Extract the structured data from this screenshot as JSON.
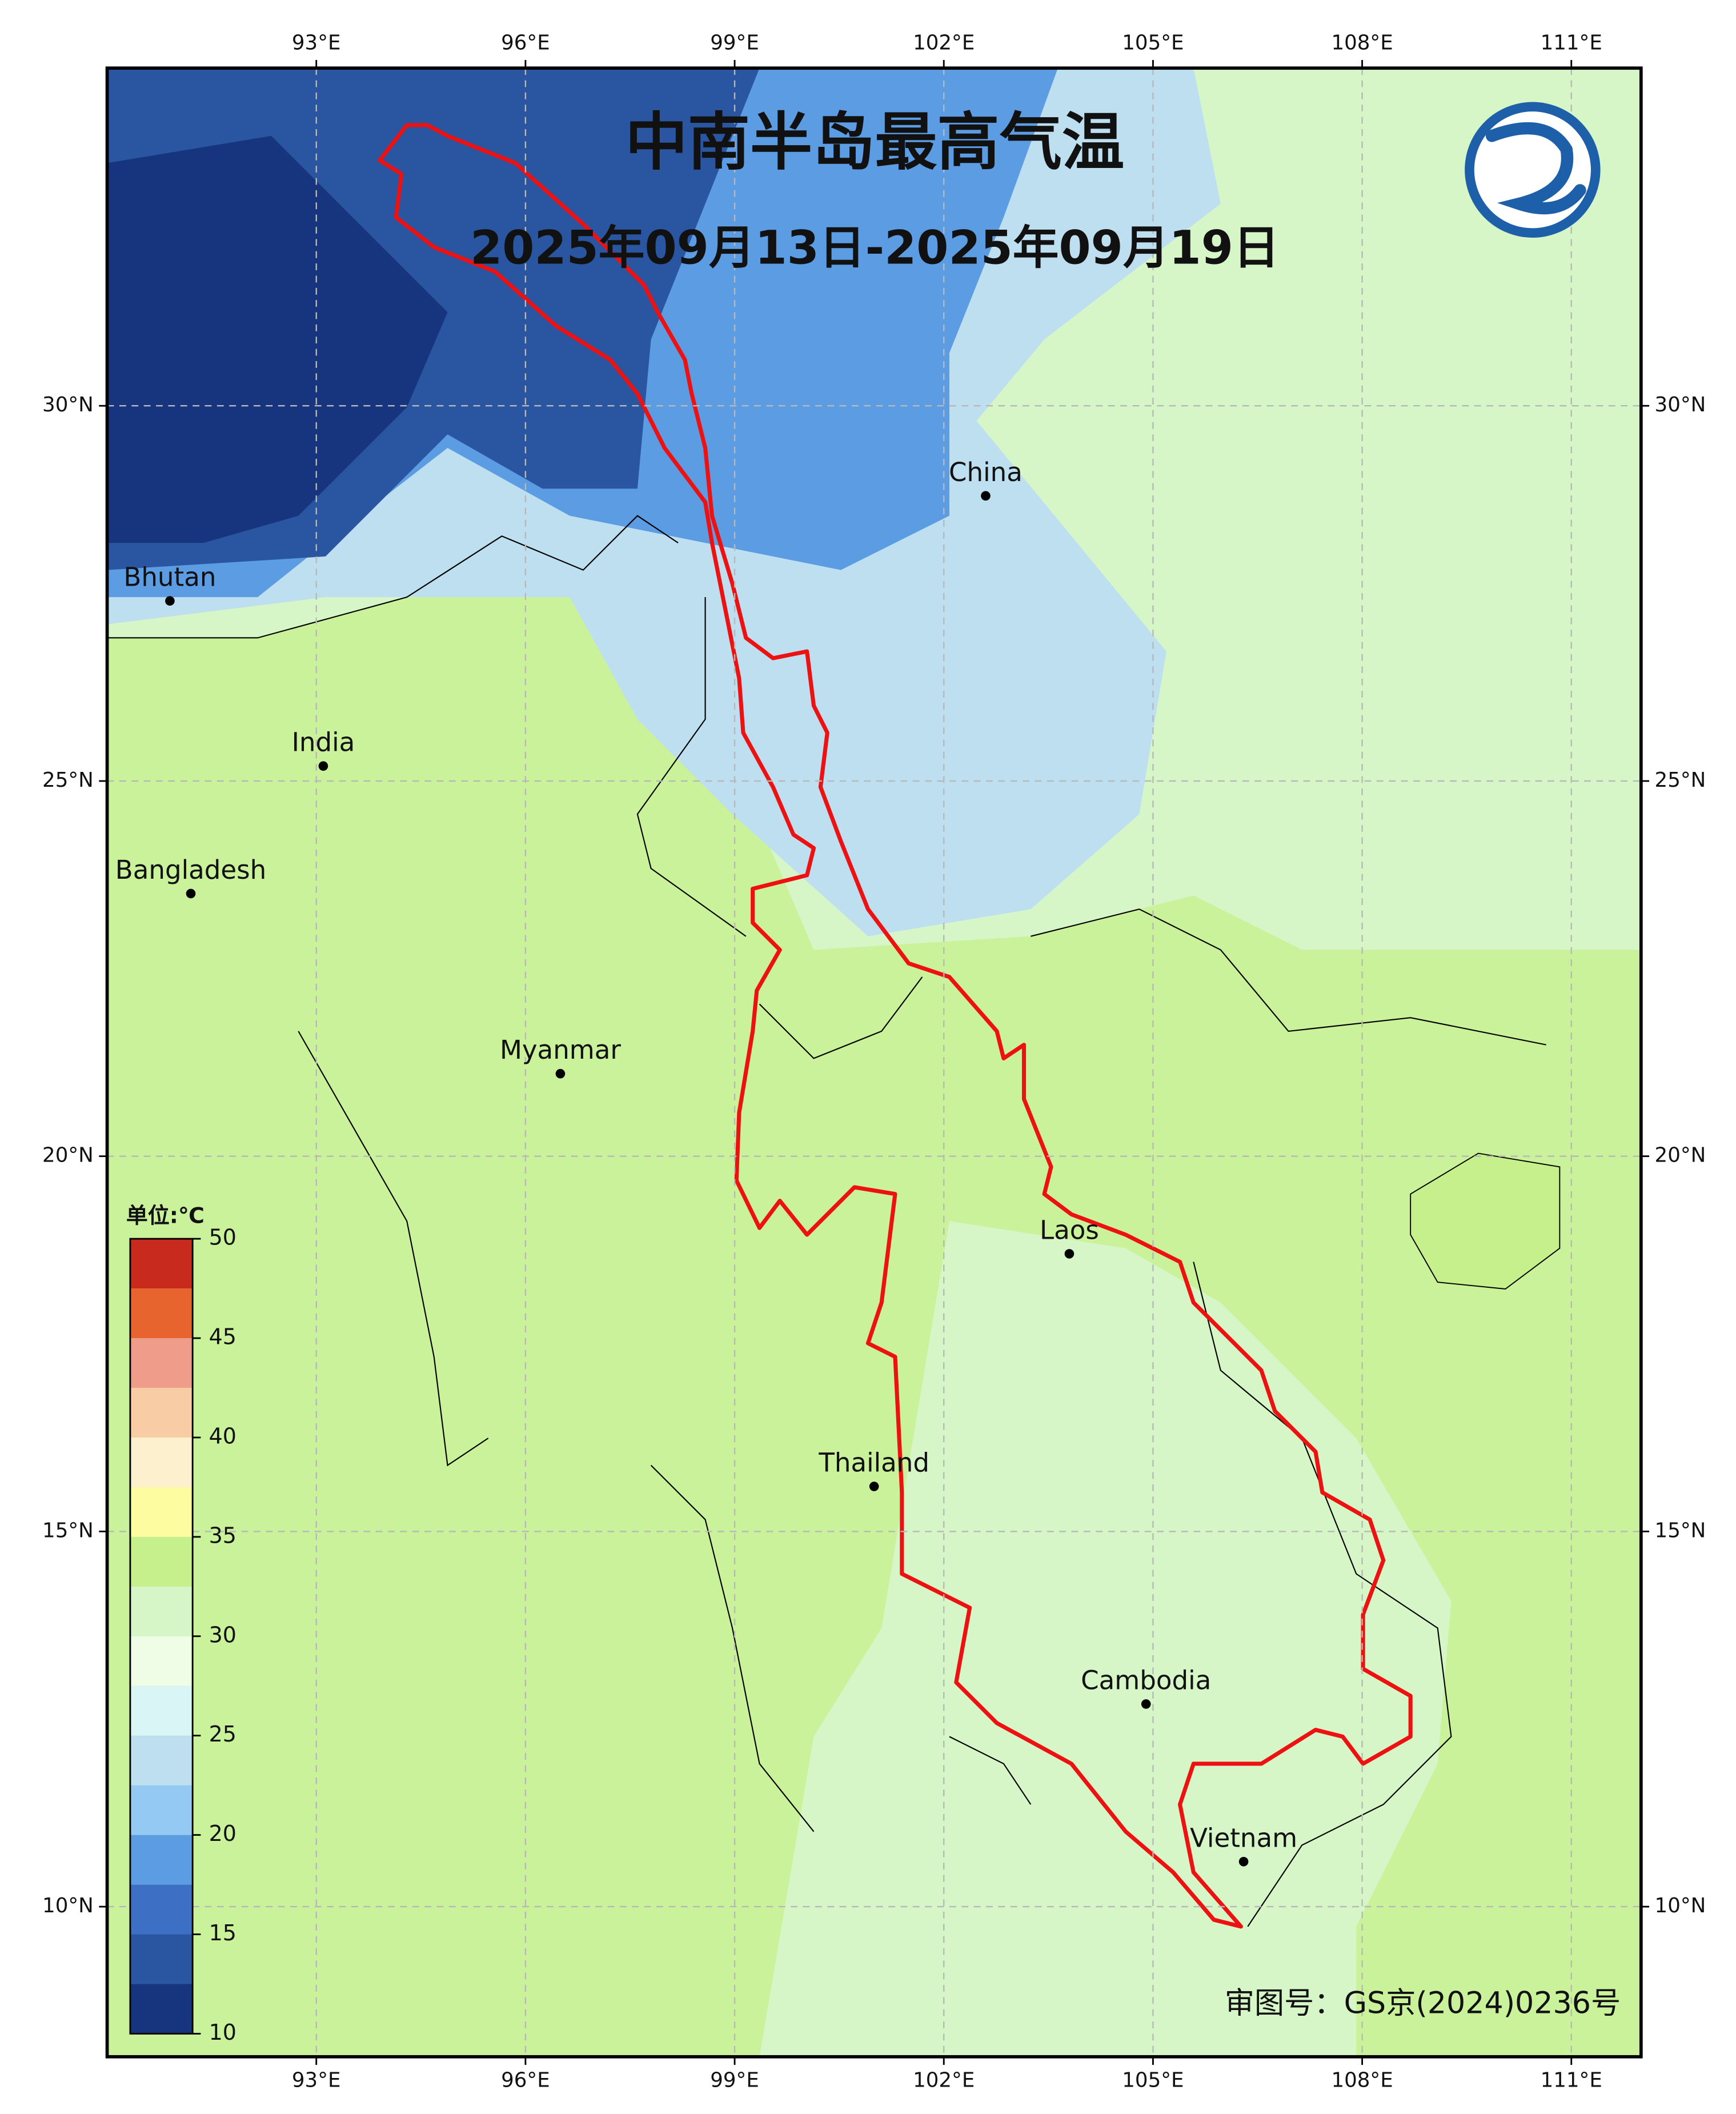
{
  "map": {
    "title": "中南半岛最高气温",
    "subtitle": "2025年09月13日-2025年09月19日",
    "credit": "审图号：GS京(2024)0236号",
    "xlim": [
      90,
      112
    ],
    "ylim": [
      8,
      34.5
    ],
    "xticks": [
      {
        "value": 93,
        "label": "93°E"
      },
      {
        "value": 96,
        "label": "96°E"
      },
      {
        "value": 99,
        "label": "99°E"
      },
      {
        "value": 102,
        "label": "102°E"
      },
      {
        "value": 105,
        "label": "105°E"
      },
      {
        "value": 108,
        "label": "108°E"
      },
      {
        "value": 111,
        "label": "111°E"
      }
    ],
    "yticks": [
      {
        "value": 10,
        "label": "10°N"
      },
      {
        "value": 15,
        "label": "15°N"
      },
      {
        "value": 20,
        "label": "20°N"
      },
      {
        "value": 25,
        "label": "25°N"
      },
      {
        "value": 30,
        "label": "30°N"
      }
    ],
    "grid": true,
    "places": [
      {
        "name": "China",
        "lon": 102.6,
        "lat": 28.8
      },
      {
        "name": "Bhutan",
        "lon": 90.9,
        "lat": 27.4
      },
      {
        "name": "India",
        "lon": 93.1,
        "lat": 25.2
      },
      {
        "name": "Bangladesh",
        "lon": 91.2,
        "lat": 23.5
      },
      {
        "name": "Myanmar",
        "lon": 96.5,
        "lat": 21.1
      },
      {
        "name": "Laos",
        "lon": 103.8,
        "lat": 18.7
      },
      {
        "name": "Thailand",
        "lon": 101.0,
        "lat": 15.6
      },
      {
        "name": "Cambodia",
        "lon": 104.9,
        "lat": 12.7
      },
      {
        "name": "Vietnam",
        "lon": 106.3,
        "lat": 10.6
      }
    ]
  },
  "colorbar": {
    "unit": "单位:℃",
    "levels": [
      10,
      12.5,
      15,
      17.5,
      20,
      22.5,
      25,
      27.5,
      30,
      32.5,
      35,
      37.5,
      40,
      42.5,
      45,
      47.5,
      50
    ],
    "colors": [
      "#17347f",
      "#2a55a0",
      "#3d6fc4",
      "#5b9ce2",
      "#93c9f2",
      "#bddff0",
      "#daf5f5",
      "#effce6",
      "#d6f6c8",
      "#c6f08c",
      "#fdfca0",
      "#fdf0cf",
      "#f8cda6",
      "#f09c8a",
      "#e8642e",
      "#c92a1e"
    ],
    "ticks": [
      10,
      15,
      20,
      25,
      30,
      35,
      40,
      45,
      50
    ]
  }
}
